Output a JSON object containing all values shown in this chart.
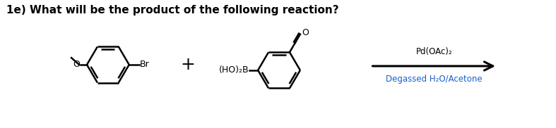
{
  "title": "1e) What will be the product of the following reaction?",
  "title_fontsize": 11,
  "title_fontweight": "bold",
  "arrow_label_top": "Pd(OAc)₂",
  "arrow_label_bottom": "Degassed H₂O/Acetone",
  "arrow_label_color_top": "#000000",
  "arrow_label_color_bottom": "#1a5fcc",
  "bg_color": "#ffffff",
  "lw": 1.8
}
